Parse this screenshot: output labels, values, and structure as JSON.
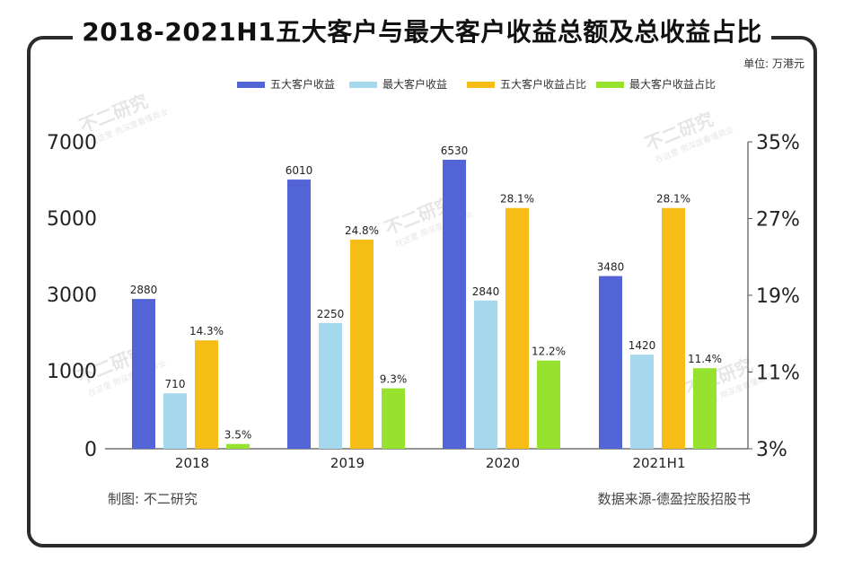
{
  "chart_title": "2018-2021H1五大客户与最大客户收益总额及总收益占比",
  "unit": "单位: 万港元",
  "footer_left": "制图: 不二研究",
  "footer_right": "数据来源-德盈控股招股书",
  "watermark": {
    "main": "不二研究",
    "sub": "在这里 用深度看懂商业"
  },
  "colors": {
    "top5_revenue": "#5364d6",
    "largest_revenue": "#a6d8ee",
    "top5_share": "#f6bd16",
    "largest_share": "#97e22f"
  },
  "chart_data": {
    "type": "bar",
    "categories": [
      "2018",
      "2019",
      "2020",
      "2021H1"
    ],
    "series": [
      {
        "name": "五大客户收益",
        "axis": "left",
        "values": [
          2880,
          6010,
          6530,
          3480
        ],
        "labels": [
          "2880",
          "6010",
          "6530",
          "3480"
        ]
      },
      {
        "name": "最大客户收益",
        "axis": "left",
        "values": [
          710,
          2250,
          2840,
          1420
        ],
        "labels": [
          "710",
          "2250",
          "2840",
          "1420"
        ]
      },
      {
        "name": "五大客户收益占比",
        "axis": "right",
        "values": [
          14.3,
          24.8,
          28.1,
          28.1
        ],
        "labels": [
          "14.3%",
          "24.8%",
          "28.1%",
          "28.1%"
        ]
      },
      {
        "name": "最大客户收益占比",
        "axis": "right",
        "values": [
          3.5,
          9.3,
          12.2,
          11.4
        ],
        "labels": [
          "3.5%",
          "9.3%",
          "12.2%",
          "11.4%"
        ]
      }
    ],
    "left_axis": {
      "ticks": [
        0,
        1000,
        3000,
        5000,
        7000
      ],
      "tick_labels": [
        "0",
        "1000",
        "3000",
        "5000",
        "7000"
      ],
      "ylim": [
        0,
        7000
      ],
      "mapping_note": "0-1000 segment is compressed; 1000-7000 spans three equal steps"
    },
    "right_axis": {
      "ticks": [
        3,
        11,
        19,
        27,
        35
      ],
      "tick_labels": [
        "3%",
        "11%",
        "19%",
        "27%",
        "35%"
      ],
      "ylim": [
        3,
        35
      ]
    },
    "grid": false,
    "legend": "top-right"
  }
}
